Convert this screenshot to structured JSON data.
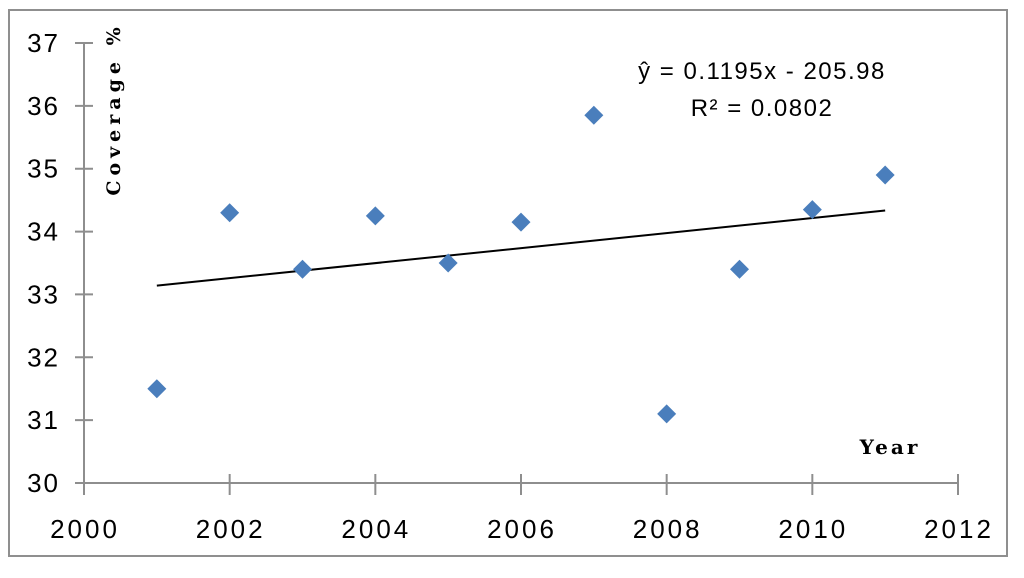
{
  "chart_data": {
    "type": "scatter",
    "title": "",
    "xlabel": "Year",
    "ylabel": "Coverage %",
    "x": [
      2001,
      2002,
      2003,
      2004,
      2005,
      2006,
      2007,
      2008,
      2009,
      2010,
      2011
    ],
    "y": [
      31.5,
      34.3,
      33.4,
      34.25,
      33.5,
      34.15,
      35.85,
      31.1,
      33.4,
      34.35,
      34.9
    ],
    "xlim": [
      2000,
      2012
    ],
    "ylim": [
      30,
      37
    ],
    "x_ticks": [
      2000,
      2002,
      2004,
      2006,
      2008,
      2010,
      2012
    ],
    "y_ticks": [
      30,
      31,
      32,
      33,
      34,
      35,
      36,
      37
    ],
    "grid": false,
    "legend": false,
    "marker": {
      "shape": "diamond",
      "size": 19
    },
    "trendline": {
      "slope": 0.1195,
      "intercept": -205.98,
      "x_start": 2001,
      "x_end": 2011,
      "equation": "ŷ = 0.1195x - 205.98",
      "r_squared": "R² = 0.0802"
    },
    "colors": {
      "marker": "#4a7ebc",
      "trendline": "#000000",
      "axis": "#8e8e8e",
      "text": "#000000",
      "frame": "#8f8f8f"
    }
  }
}
